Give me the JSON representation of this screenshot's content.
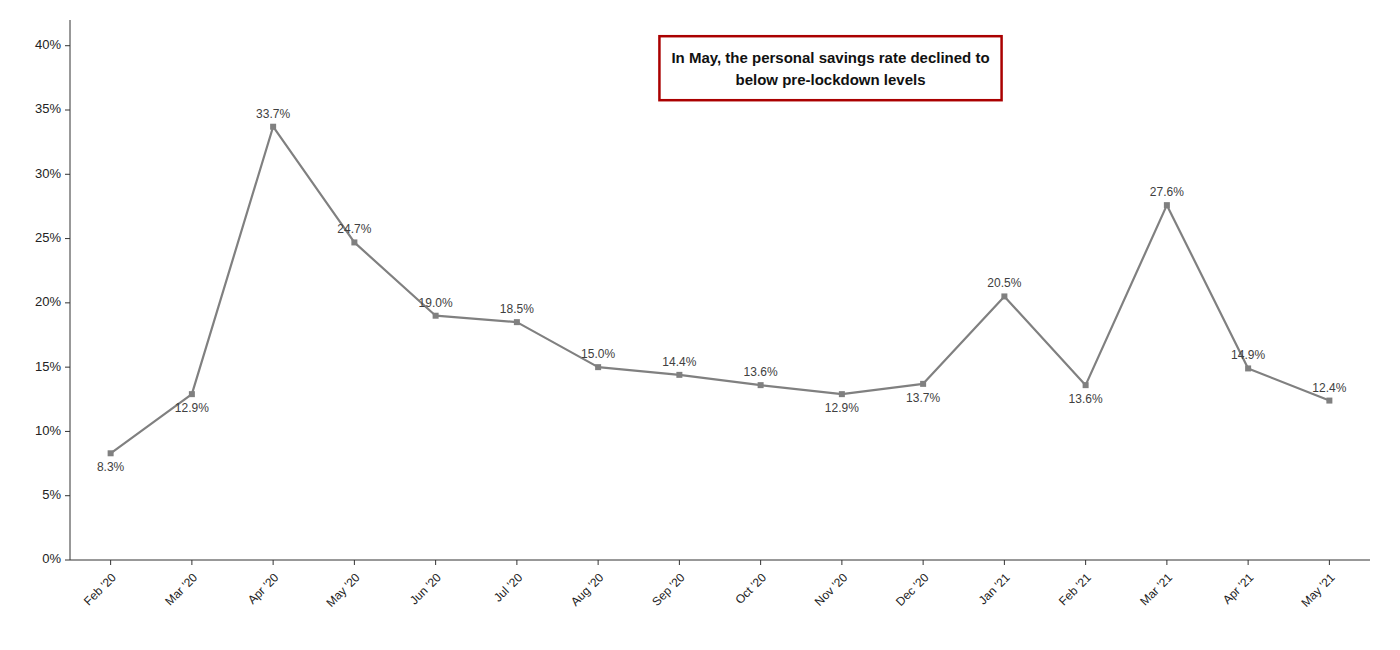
{
  "chart_data": {
    "type": "line",
    "categories": [
      "Feb '20",
      "Mar '20",
      "Apr '20",
      "May '20",
      "Jun '20",
      "Jul '20",
      "Aug '20",
      "Sep '20",
      "Oct '20",
      "Nov '20",
      "Dec '20",
      "Jan '21",
      "Feb '21",
      "Mar '21",
      "Apr '21",
      "May '21"
    ],
    "values": [
      8.3,
      12.9,
      33.7,
      24.7,
      19.0,
      18.5,
      15.0,
      14.4,
      13.6,
      12.9,
      13.7,
      20.5,
      13.6,
      27.6,
      14.9,
      12.4
    ],
    "value_labels": [
      "8.3%",
      "12.9%",
      "33.7%",
      "24.7%",
      "19.0%",
      "18.5%",
      "15.0%",
      "14.4%",
      "13.6%",
      "12.9%",
      "13.7%",
      "20.5%",
      "13.6%",
      "27.6%",
      "14.9%",
      "12.4%"
    ],
    "data_labels": true,
    "color": "#808080",
    "marker": "square",
    "ylim": [
      0,
      42
    ],
    "yticks": [
      {
        "value": 0,
        "label": "0%"
      },
      {
        "value": 5,
        "label": "5%"
      },
      {
        "value": 10,
        "label": "10%"
      },
      {
        "value": 15,
        "label": "15%"
      },
      {
        "value": 20,
        "label": "20%"
      },
      {
        "value": 25,
        "label": "25%"
      },
      {
        "value": 30,
        "label": "30%"
      },
      {
        "value": 35,
        "label": "35%"
      },
      {
        "value": 40,
        "label": "40%"
      }
    ],
    "grid": false,
    "annotation": "In May, the personal savings rate declined to\nbelow pre-lockdown levels"
  }
}
